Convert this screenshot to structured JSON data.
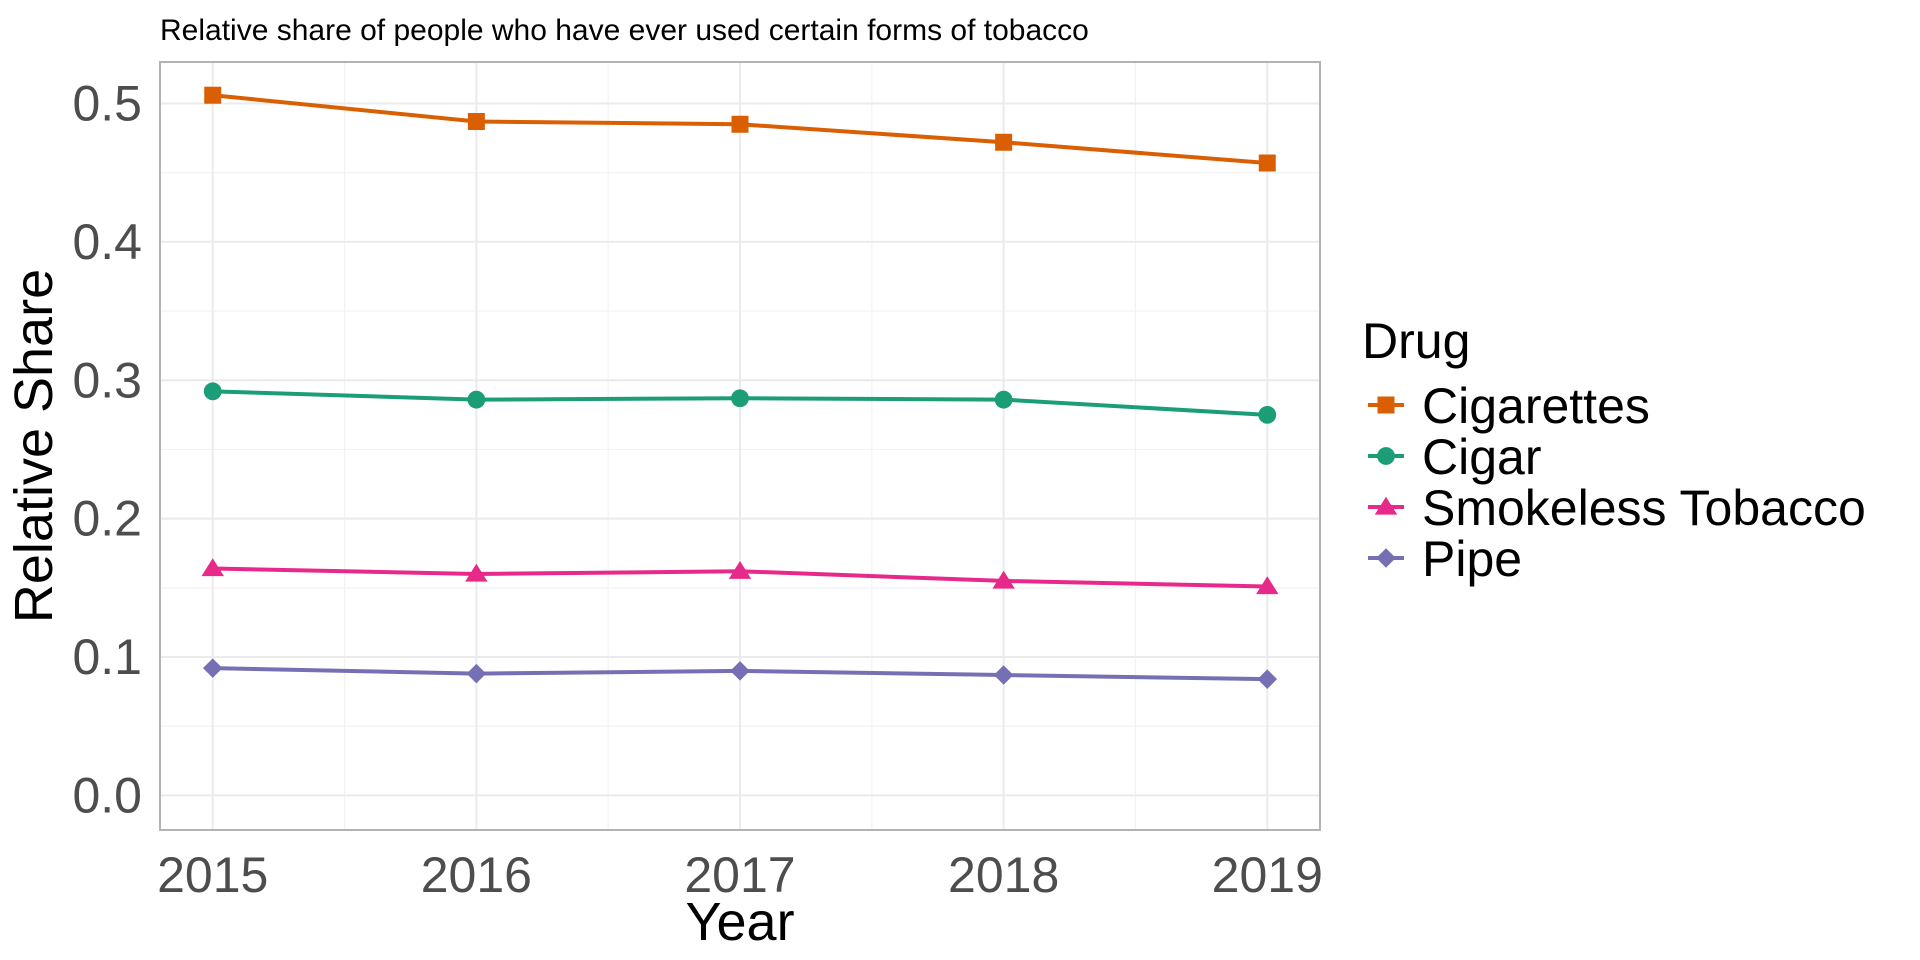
{
  "chart_data": {
    "type": "line",
    "title": "Relative share of people who have ever used certain forms of tobacco",
    "xlabel": "Year",
    "ylabel": "Relative Share",
    "x": [
      "2015",
      "2016",
      "2017",
      "2018",
      "2019"
    ],
    "xlim": [
      2014.8,
      2019.2
    ],
    "ylim": [
      -0.025,
      0.53
    ],
    "y_ticks": [
      "0.0",
      "0.1",
      "0.2",
      "0.3",
      "0.4",
      "0.5"
    ],
    "grid": true,
    "legend": {
      "title": "Drug",
      "position": "right"
    },
    "series": [
      {
        "name": "Cigarettes",
        "marker": "square",
        "color": "#d95f02",
        "values": [
          0.506,
          0.487,
          0.485,
          0.472,
          0.457
        ]
      },
      {
        "name": "Cigar",
        "marker": "circle",
        "color": "#1b9e77",
        "values": [
          0.292,
          0.286,
          0.287,
          0.286,
          0.275
        ]
      },
      {
        "name": "Smokeless Tobacco",
        "marker": "triangle",
        "color": "#e7298a",
        "values": [
          0.164,
          0.16,
          0.162,
          0.155,
          0.151
        ]
      },
      {
        "name": "Pipe",
        "marker": "diamond",
        "color": "#7570b3",
        "values": [
          0.092,
          0.088,
          0.09,
          0.087,
          0.084
        ]
      }
    ]
  }
}
